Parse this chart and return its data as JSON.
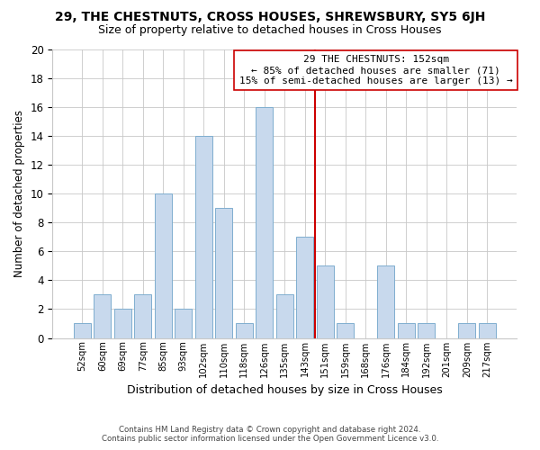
{
  "title": "29, THE CHESTNUTS, CROSS HOUSES, SHREWSBURY, SY5 6JH",
  "subtitle": "Size of property relative to detached houses in Cross Houses",
  "xlabel": "Distribution of detached houses by size in Cross Houses",
  "ylabel": "Number of detached properties",
  "bar_labels": [
    "52sqm",
    "60sqm",
    "69sqm",
    "77sqm",
    "85sqm",
    "93sqm",
    "102sqm",
    "110sqm",
    "118sqm",
    "126sqm",
    "135sqm",
    "143sqm",
    "151sqm",
    "159sqm",
    "168sqm",
    "176sqm",
    "184sqm",
    "192sqm",
    "201sqm",
    "209sqm",
    "217sqm"
  ],
  "bar_values": [
    1,
    3,
    2,
    3,
    10,
    2,
    14,
    9,
    1,
    16,
    3,
    7,
    5,
    1,
    0,
    5,
    1,
    1,
    0,
    1,
    1
  ],
  "bar_color": "#c8d9ed",
  "bar_edge_color": "#7faecf",
  "vline_color": "#cc0000",
  "annotation_title": "29 THE CHESTNUTS: 152sqm",
  "annotation_line1": "← 85% of detached houses are smaller (71)",
  "annotation_line2": "15% of semi-detached houses are larger (13) →",
  "annotation_box_color": "#ffffff",
  "annotation_box_edge": "#cc0000",
  "ylim": [
    0,
    20
  ],
  "yticks": [
    0,
    2,
    4,
    6,
    8,
    10,
    12,
    14,
    16,
    18,
    20
  ],
  "footer1": "Contains HM Land Registry data © Crown copyright and database right 2024.",
  "footer2": "Contains public sector information licensed under the Open Government Licence v3.0.",
  "bg_color": "#ffffff",
  "grid_color": "#c8c8c8"
}
